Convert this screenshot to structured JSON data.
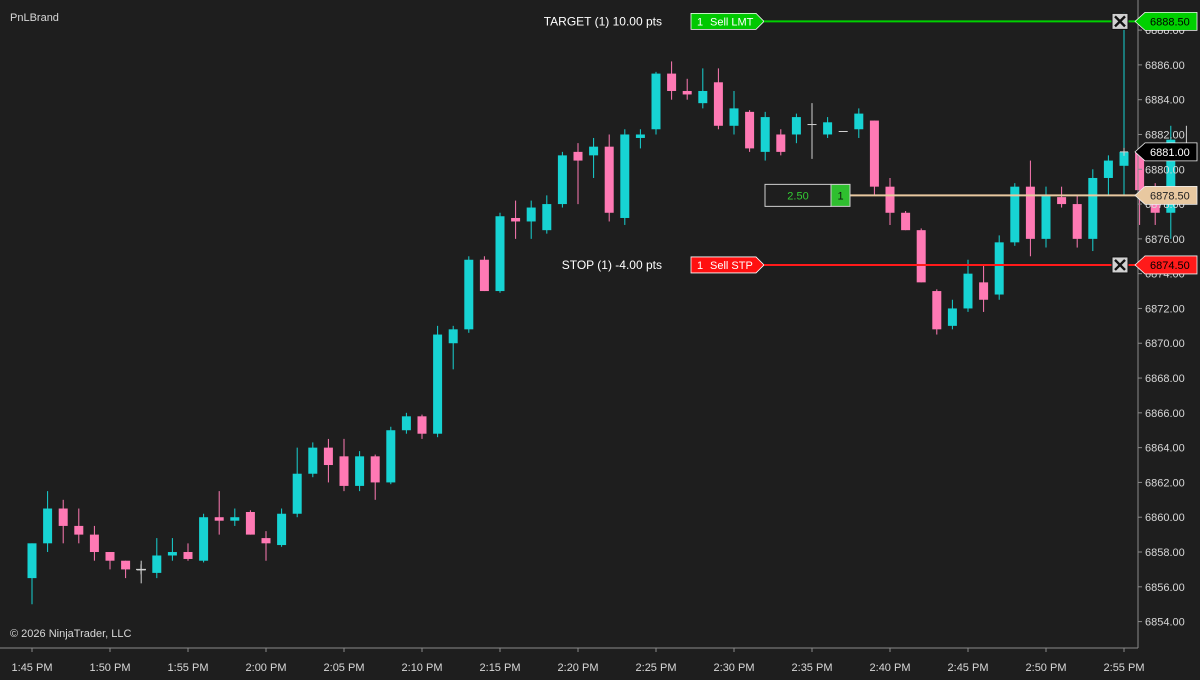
{
  "window": {
    "instrument_label": "PnLBrand",
    "copyright": "© 2026 NinjaTrader, LLC"
  },
  "colors": {
    "background": "#1e1e1e",
    "up_candle": "#17d3d3",
    "down_candle": "#ff79b4",
    "target_line": "#00d000",
    "stop_line": "#ff1a1a",
    "position_line": "#e8c8a0",
    "last_price_badge": "#000000",
    "axis_text": "#d8d8d8"
  },
  "chart_data": {
    "type": "candlestick",
    "ylim": [
      6853,
      6889.5
    ],
    "y_ticks": [
      "6854.00",
      "6856.00",
      "6858.00",
      "6860.00",
      "6862.00",
      "6864.00",
      "6866.00",
      "6868.00",
      "6870.00",
      "6872.00",
      "6874.00",
      "6876.00",
      "6878.00",
      "6880.00",
      "6882.00",
      "6884.00",
      "6886.00",
      "6888.00"
    ],
    "x_ticks": [
      "1:45 PM",
      "1:50 PM",
      "1:55 PM",
      "2:00 PM",
      "2:05 PM",
      "2:10 PM",
      "2:15 PM",
      "2:20 PM",
      "2:25 PM",
      "2:30 PM",
      "2:35 PM",
      "2:40 PM",
      "2:45 PM",
      "2:50 PM",
      "2:55 PM"
    ],
    "interval_minutes": 1,
    "candles": [
      {
        "o": 6856.5,
        "h": 6858.5,
        "l": 6855.0,
        "c": 6858.5
      },
      {
        "o": 6858.5,
        "h": 6861.5,
        "l": 6858.0,
        "c": 6860.5
      },
      {
        "o": 6860.5,
        "h": 6861.0,
        "l": 6858.5,
        "c": 6859.5
      },
      {
        "o": 6859.5,
        "h": 6860.5,
        "l": 6858.5,
        "c": 6859.0
      },
      {
        "o": 6859.0,
        "h": 6859.5,
        "l": 6857.5,
        "c": 6858.0
      },
      {
        "o": 6858.0,
        "h": 6858.0,
        "l": 6857.0,
        "c": 6857.5
      },
      {
        "o": 6857.5,
        "h": 6857.5,
        "l": 6856.5,
        "c": 6857.0
      },
      {
        "o": 6857.0,
        "h": 6857.5,
        "l": 6856.2,
        "c": 6857.0
      },
      {
        "o": 6856.8,
        "h": 6858.8,
        "l": 6856.5,
        "c": 6857.8
      },
      {
        "o": 6857.8,
        "h": 6858.8,
        "l": 6857.5,
        "c": 6858.0
      },
      {
        "o": 6858.0,
        "h": 6858.5,
        "l": 6857.5,
        "c": 6857.6
      },
      {
        "o": 6857.5,
        "h": 6860.2,
        "l": 6857.4,
        "c": 6860.0
      },
      {
        "o": 6860.0,
        "h": 6861.5,
        "l": 6859.0,
        "c": 6859.8
      },
      {
        "o": 6859.8,
        "h": 6860.5,
        "l": 6859.5,
        "c": 6860.0
      },
      {
        "o": 6860.3,
        "h": 6860.4,
        "l": 6859.0,
        "c": 6859.0
      },
      {
        "o": 6858.8,
        "h": 6859.2,
        "l": 6857.5,
        "c": 6858.5
      },
      {
        "o": 6858.4,
        "h": 6860.5,
        "l": 6858.3,
        "c": 6860.2
      },
      {
        "o": 6860.2,
        "h": 6864.0,
        "l": 6860.0,
        "c": 6862.5
      },
      {
        "o": 6862.5,
        "h": 6864.3,
        "l": 6862.3,
        "c": 6864.0
      },
      {
        "o": 6864.0,
        "h": 6864.5,
        "l": 6862.0,
        "c": 6863.0
      },
      {
        "o": 6863.5,
        "h": 6864.5,
        "l": 6861.5,
        "c": 6861.8
      },
      {
        "o": 6861.8,
        "h": 6863.8,
        "l": 6861.5,
        "c": 6863.5
      },
      {
        "o": 6863.5,
        "h": 6863.6,
        "l": 6861.0,
        "c": 6862.0
      },
      {
        "o": 6862.0,
        "h": 6865.2,
        "l": 6861.9,
        "c": 6865.0
      },
      {
        "o": 6865.0,
        "h": 6866.0,
        "l": 6864.8,
        "c": 6865.8
      },
      {
        "o": 6865.8,
        "h": 6865.9,
        "l": 6864.5,
        "c": 6864.8
      },
      {
        "o": 6864.8,
        "h": 6871.0,
        "l": 6864.6,
        "c": 6870.5
      },
      {
        "o": 6870.0,
        "h": 6871.0,
        "l": 6868.5,
        "c": 6870.8
      },
      {
        "o": 6870.8,
        "h": 6875.0,
        "l": 6870.6,
        "c": 6874.8
      },
      {
        "o": 6874.8,
        "h": 6875.0,
        "l": 6873.0,
        "c": 6873.0
      },
      {
        "o": 6873.0,
        "h": 6877.5,
        "l": 6872.9,
        "c": 6877.3
      },
      {
        "o": 6877.2,
        "h": 6878.2,
        "l": 6876.0,
        "c": 6877.0
      },
      {
        "o": 6877.0,
        "h": 6878.2,
        "l": 6876.0,
        "c": 6877.8
      },
      {
        "o": 6876.5,
        "h": 6878.5,
        "l": 6876.3,
        "c": 6878.0
      },
      {
        "o": 6878.0,
        "h": 6881.0,
        "l": 6877.8,
        "c": 6880.8
      },
      {
        "o": 6881.0,
        "h": 6881.5,
        "l": 6878.0,
        "c": 6880.5
      },
      {
        "o": 6880.8,
        "h": 6881.8,
        "l": 6879.5,
        "c": 6881.3
      },
      {
        "o": 6881.3,
        "h": 6882.0,
        "l": 6877.0,
        "c": 6877.5
      },
      {
        "o": 6877.2,
        "h": 6882.3,
        "l": 6876.8,
        "c": 6882.0
      },
      {
        "o": 6881.8,
        "h": 6882.3,
        "l": 6881.2,
        "c": 6882.0
      },
      {
        "o": 6882.3,
        "h": 6885.6,
        "l": 6882.0,
        "c": 6885.5
      },
      {
        "o": 6885.5,
        "h": 6886.2,
        "l": 6884.0,
        "c": 6884.5
      },
      {
        "o": 6884.5,
        "h": 6885.2,
        "l": 6884.0,
        "c": 6884.3
      },
      {
        "o": 6883.8,
        "h": 6885.8,
        "l": 6883.5,
        "c": 6884.5
      },
      {
        "o": 6885.0,
        "h": 6885.8,
        "l": 6882.3,
        "c": 6882.5
      },
      {
        "o": 6882.5,
        "h": 6884.5,
        "l": 6882.0,
        "c": 6883.5
      },
      {
        "o": 6883.3,
        "h": 6883.4,
        "l": 6881.0,
        "c": 6881.2
      },
      {
        "o": 6881.0,
        "h": 6883.3,
        "l": 6880.5,
        "c": 6883.0
      },
      {
        "o": 6882.0,
        "h": 6882.3,
        "l": 6880.8,
        "c": 6881.0
      },
      {
        "o": 6882.0,
        "h": 6883.2,
        "l": 6881.5,
        "c": 6883.0
      },
      {
        "o": 6882.6,
        "h": 6883.8,
        "l": 6880.6,
        "c": 6882.6
      },
      {
        "o": 6882.0,
        "h": 6883.0,
        "l": 6881.8,
        "c": 6882.7
      },
      {
        "o": 6882.2,
        "h": 6882.2,
        "l": 6882.2,
        "c": 6882.2
      },
      {
        "o": 6882.3,
        "h": 6883.5,
        "l": 6881.8,
        "c": 6883.2
      },
      {
        "o": 6882.8,
        "h": 6882.8,
        "l": 6878.5,
        "c": 6879.0
      },
      {
        "o": 6879.0,
        "h": 6879.5,
        "l": 6876.8,
        "c": 6877.5
      },
      {
        "o": 6877.5,
        "h": 6877.6,
        "l": 6876.5,
        "c": 6876.5
      },
      {
        "o": 6876.5,
        "h": 6876.6,
        "l": 6873.5,
        "c": 6873.5
      },
      {
        "o": 6873.0,
        "h": 6873.1,
        "l": 6870.5,
        "c": 6870.8
      },
      {
        "o": 6871.0,
        "h": 6872.5,
        "l": 6870.8,
        "c": 6872.0
      },
      {
        "o": 6872.0,
        "h": 6874.8,
        "l": 6871.8,
        "c": 6874.0
      },
      {
        "o": 6873.5,
        "h": 6874.5,
        "l": 6871.8,
        "c": 6872.5
      },
      {
        "o": 6872.8,
        "h": 6876.2,
        "l": 6872.5,
        "c": 6875.8
      },
      {
        "o": 6875.8,
        "h": 6879.2,
        "l": 6875.6,
        "c": 6879.0
      },
      {
        "o": 6879.0,
        "h": 6880.5,
        "l": 6875.0,
        "c": 6876.0
      },
      {
        "o": 6876.0,
        "h": 6879.0,
        "l": 6875.5,
        "c": 6878.5
      },
      {
        "o": 6878.4,
        "h": 6879.0,
        "l": 6877.8,
        "c": 6878.0
      },
      {
        "o": 6878.0,
        "h": 6878.5,
        "l": 6875.5,
        "c": 6876.0
      },
      {
        "o": 6876.0,
        "h": 6880.0,
        "l": 6875.3,
        "c": 6879.5
      },
      {
        "o": 6879.5,
        "h": 6880.8,
        "l": 6878.5,
        "c": 6880.5
      },
      {
        "o": 6880.2,
        "h": 6889.0,
        "l": 6878.5,
        "c": 6881.0
      },
      {
        "o": 6881.0,
        "h": 6881.2,
        "l": 6876.8,
        "c": 6878.8
      },
      {
        "o": 6878.8,
        "h": 6879.2,
        "l": 6876.8,
        "c": 6877.5
      },
      {
        "o": 6877.5,
        "h": 6882.5,
        "l": 6876.0,
        "c": 6881.7
      },
      {
        "o": 6881.0,
        "h": 6882.5,
        "l": 6880.8,
        "c": 6881.0
      }
    ]
  },
  "orders": {
    "target": {
      "text": "TARGET (1) 10.00 pts",
      "qty": "1",
      "type": "Sell LMT",
      "price": 6888.5,
      "price_label": "6888.50"
    },
    "stop": {
      "text": "STOP (1) -4.00 pts",
      "qty": "1",
      "type": "Sell STP",
      "price": 6874.5,
      "price_label": "6874.50"
    },
    "position": {
      "pnl": "2.50",
      "qty": "1",
      "price": 6878.5,
      "price_label": "6878.50"
    },
    "last_price": {
      "price": 6881.0,
      "price_label": "6881.00"
    }
  }
}
